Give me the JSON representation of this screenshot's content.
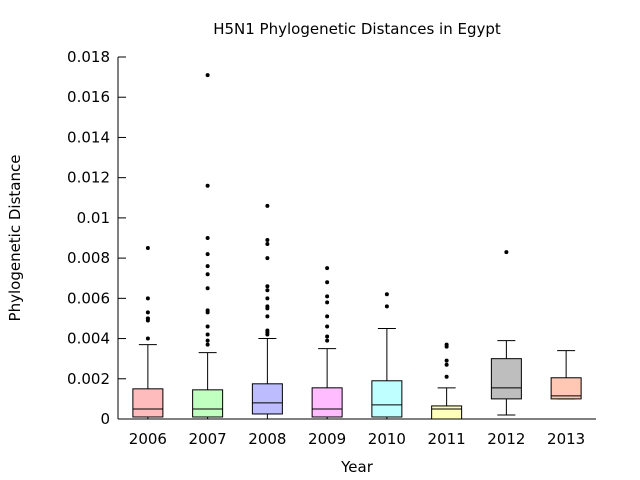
{
  "chart_data": {
    "type": "box",
    "title": "H5N1 Phylogenetic Distances in Egypt",
    "xlabel": "Year",
    "ylabel": "Phylogenetic Distance",
    "ylim": [
      0,
      0.018
    ],
    "yticks": [
      "0",
      "0.002",
      "0.004",
      "0.006",
      "0.008",
      "0.01",
      "0.012",
      "0.014",
      "0.016",
      "0.018"
    ],
    "ytick_values": [
      0,
      0.002,
      0.004,
      0.006,
      0.008,
      0.01,
      0.012,
      0.014,
      0.016,
      0.018
    ],
    "grid": false,
    "legend": "none",
    "categories": [
      "2006",
      "2007",
      "2008",
      "2009",
      "2010",
      "2011",
      "2012",
      "2013"
    ],
    "boxes": [
      {
        "category": "2006",
        "color": "#ffbcbc",
        "whisker_low": 0.0,
        "q1": 0.0001,
        "median": 0.0005,
        "q3": 0.0015,
        "whisker_high": 0.0037,
        "outliers": [
          0.0085,
          0.006,
          0.0053,
          0.005,
          0.005,
          0.0049,
          0.004
        ]
      },
      {
        "category": "2007",
        "color": "#c0ffc0",
        "whisker_low": 0.0,
        "q1": 0.0001,
        "median": 0.0005,
        "q3": 0.00145,
        "whisker_high": 0.0033,
        "outliers": [
          0.0171,
          0.0116,
          0.009,
          0.0082,
          0.0076,
          0.0072,
          0.0065,
          0.0054,
          0.0053,
          0.0046,
          0.0042,
          0.0039,
          0.0037
        ]
      },
      {
        "category": "2008",
        "color": "#bcbcff",
        "whisker_low": 0.0,
        "q1": 0.00025,
        "median": 0.0008,
        "q3": 0.00175,
        "whisker_high": 0.004,
        "outliers": [
          0.0106,
          0.0089,
          0.0087,
          0.008,
          0.0066,
          0.0064,
          0.006,
          0.0056,
          0.0055,
          0.0051,
          0.0044,
          0.0043,
          0.0042
        ]
      },
      {
        "category": "2009",
        "color": "#ffbcff",
        "whisker_low": 0.0,
        "q1": 0.0001,
        "median": 0.0005,
        "q3": 0.00155,
        "whisker_high": 0.0035,
        "outliers": [
          0.0075,
          0.0068,
          0.0061,
          0.0058,
          0.0051,
          0.0046,
          0.0041,
          0.0039
        ]
      },
      {
        "category": "2010",
        "color": "#c0ffff",
        "whisker_low": 0.0,
        "q1": 0.0001,
        "median": 0.0007,
        "q3": 0.0019,
        "whisker_high": 0.0045,
        "outliers": [
          0.0062,
          0.0056
        ]
      },
      {
        "category": "2011",
        "color": "#ffffbc",
        "whisker_low": 0.0,
        "q1": 0.0,
        "median": 0.0005,
        "q3": 0.00065,
        "whisker_high": 0.00155,
        "outliers": [
          0.0037,
          0.0036,
          0.0029,
          0.0027,
          0.0021
        ]
      },
      {
        "category": "2012",
        "color": "#bebebe",
        "whisker_low": 0.0002,
        "q1": 0.001,
        "median": 0.00155,
        "q3": 0.003,
        "whisker_high": 0.0039,
        "outliers": [
          0.0083
        ]
      },
      {
        "category": "2013",
        "color": "#ffc8b4",
        "whisker_low": 0.001,
        "q1": 0.001,
        "median": 0.00115,
        "q3": 0.00205,
        "whisker_high": 0.0034,
        "outliers": []
      }
    ]
  }
}
